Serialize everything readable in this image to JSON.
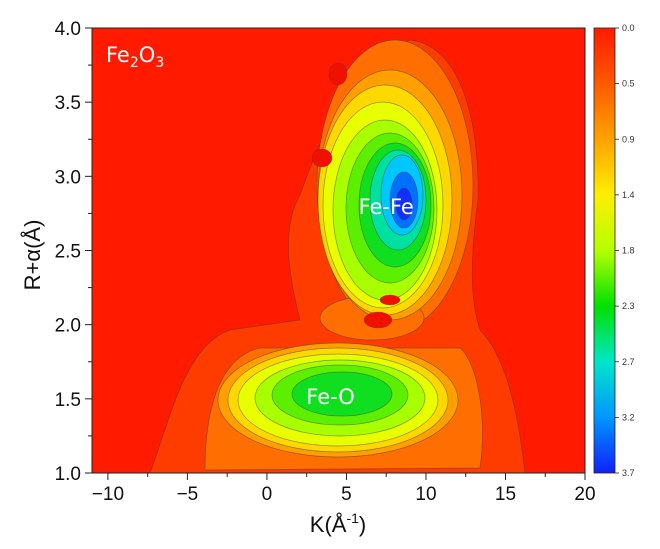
{
  "chart_data": {
    "type": "heatmap",
    "title": "",
    "xlabel": "K(Å-1)",
    "xlabel_main": "K(Å",
    "xlabel_sup": "-1",
    "xlabel_close": ")",
    "ylabel": "R+α(Å)",
    "xlim": [
      -11,
      20
    ],
    "ylim": [
      1.0,
      4.0
    ],
    "x_ticks": [
      -10,
      -5,
      0,
      5,
      10,
      15,
      20
    ],
    "y_ticks": [
      1.0,
      1.5,
      2.0,
      2.5,
      3.0,
      3.5,
      4.0
    ],
    "x_tick_labels": [
      "−10",
      "−5",
      "0",
      "5",
      "10",
      "15",
      "20"
    ],
    "y_tick_labels": [
      "1.0",
      "1.5",
      "2.0",
      "2.5",
      "3.0",
      "3.5",
      "4.0"
    ],
    "colorbar": {
      "min": 0.0,
      "max": 3.7,
      "reversed": true,
      "tick_labels": [
        "0.0",
        "0.5",
        "0.9",
        "1.4",
        "1.8",
        "2.3",
        "2.7",
        "3.2",
        "3.7"
      ],
      "colors": [
        "#ff1a00",
        "#ff5a00",
        "#ffa200",
        "#ffee00",
        "#b4ff00",
        "#00e000",
        "#00e6c8",
        "#0096ff",
        "#1020ff"
      ]
    },
    "sample_label": {
      "base": "Fe",
      "sub1": "2",
      "mid": "O",
      "sub2": "3"
    },
    "annotations": [
      {
        "text": "Fe-Fe",
        "x": 7.5,
        "y": 2.8
      },
      {
        "text": "Fe-O",
        "x": 4.0,
        "y": 1.52
      }
    ],
    "peaks": [
      {
        "name": "Fe-O",
        "x": 4.8,
        "y": 1.52,
        "value": 2.3
      },
      {
        "name": "Fe-Fe",
        "x": 7.8,
        "y": 2.8,
        "value": 3.7
      }
    ]
  }
}
